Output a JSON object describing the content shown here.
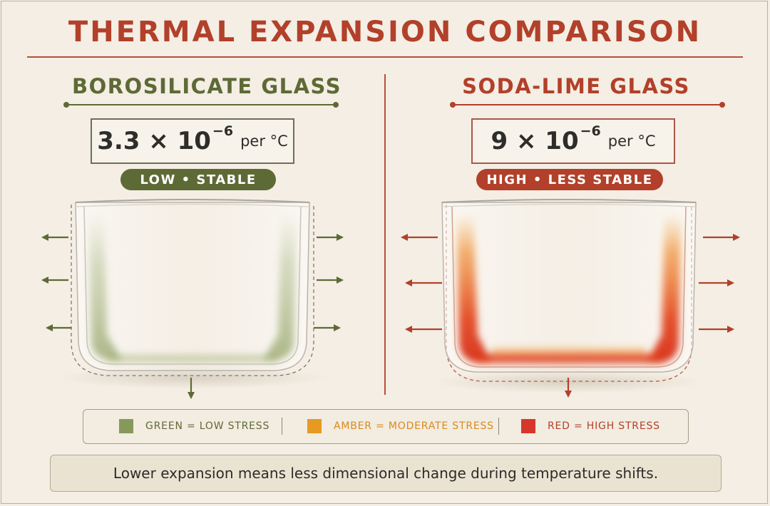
{
  "title": "THERMAL EXPANSION COMPARISON",
  "panels": [
    {
      "name": "BOROSILICATE GLASS",
      "coefficient": {
        "mantissa": "3.3 × 10",
        "exponent": "−6",
        "unit": "per °C"
      },
      "badge": "LOW • STABLE",
      "color": "#5e6a36"
    },
    {
      "name": "SODA-LIME GLASS",
      "coefficient": {
        "mantissa": "9 × 10",
        "exponent": "−6",
        "unit": "per °C"
      },
      "badge": "HIGH • LESS STABLE",
      "color": "#b2402a"
    }
  ],
  "legend": [
    {
      "label": "GREEN = LOW STRESS",
      "color": "#86995b",
      "text_color": "#5e6a36"
    },
    {
      "label": "AMBER = MODERATE STRESS",
      "color": "#e69a22",
      "text_color": "#d98a1c"
    },
    {
      "label": "RED = HIGH STRESS",
      "color": "#d7362a",
      "text_color": "#b2402a"
    }
  ],
  "footnote": "Lower expansion means less dimensional change during temperature shifts.",
  "icons": [
    "expansion-arrow-icon",
    "glass-dish-icon"
  ]
}
